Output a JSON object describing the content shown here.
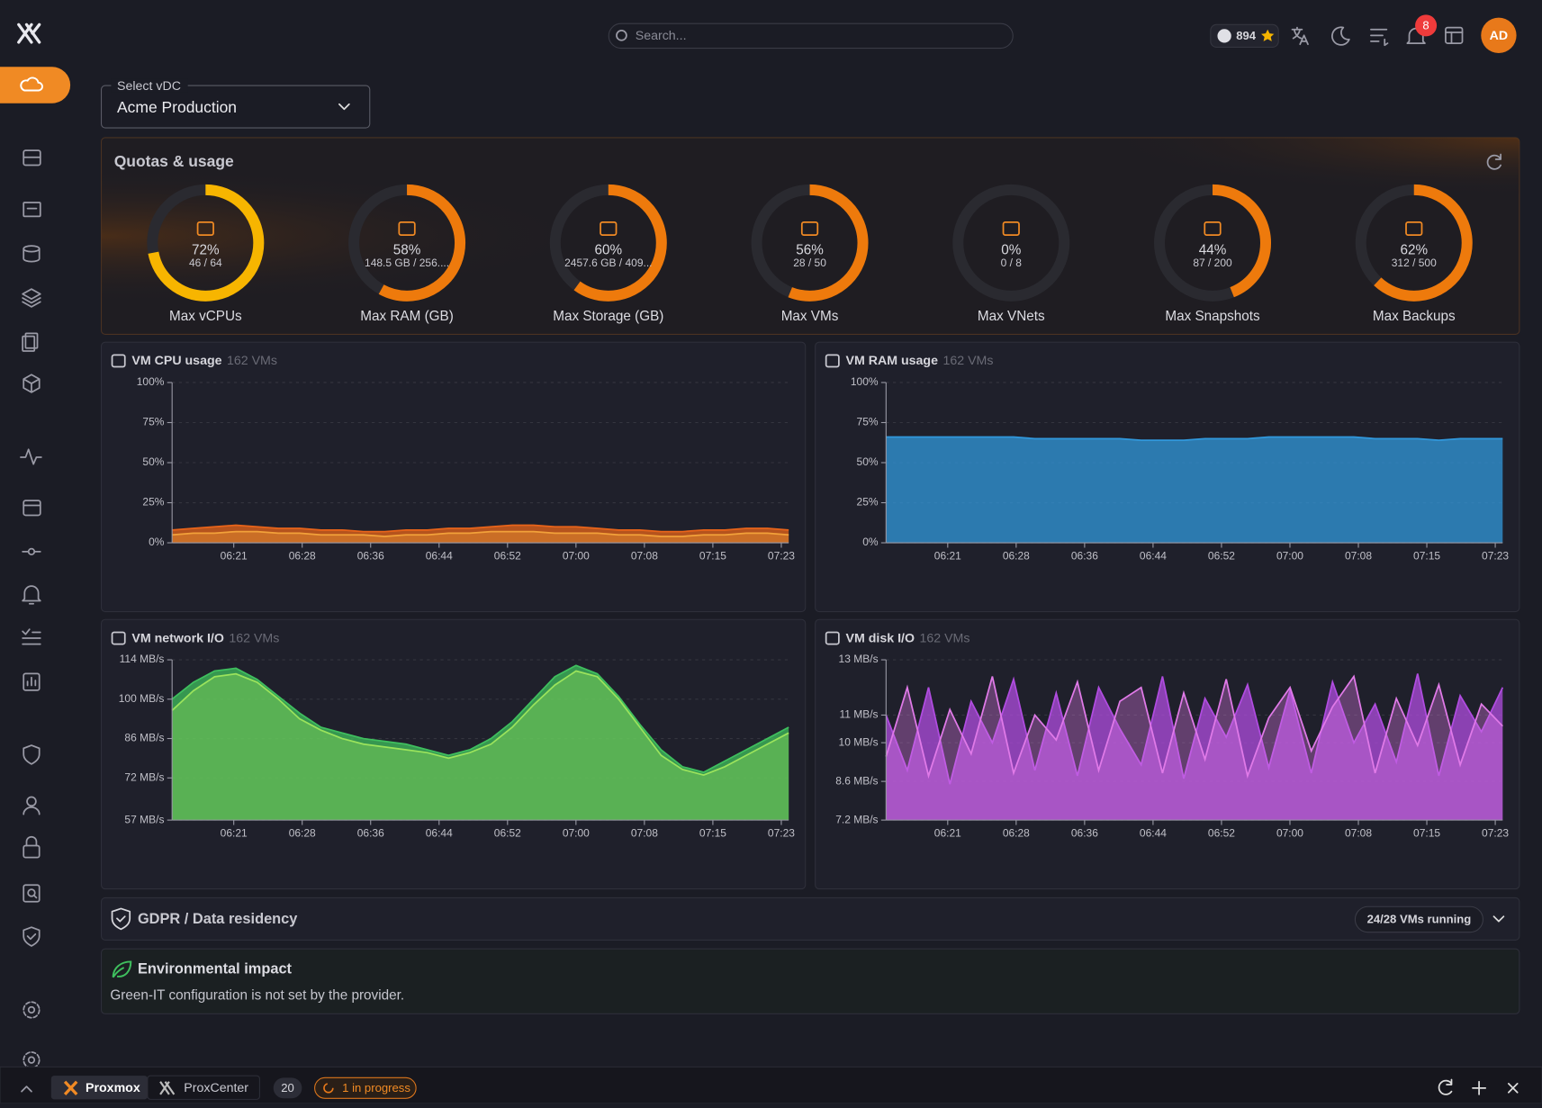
{
  "header": {
    "search_placeholder": "Search...",
    "github_stars": 894,
    "notifications": 8,
    "avatar": "AD"
  },
  "vdc": {
    "label": "Select vDC",
    "value": "Acme Production"
  },
  "quotas": {
    "title": "Quotas & usage",
    "items": [
      {
        "name": "Max vCPUs",
        "value": 72,
        "value_label": "72%",
        "detail": "46 / 64",
        "color": "#f7b500"
      },
      {
        "name": "Max RAM (GB)",
        "value": 58,
        "value_label": "58%",
        "detail": "148.5 GB / 256....",
        "color": "#ee7a0c"
      },
      {
        "name": "Max Storage (GB)",
        "value": 60,
        "value_label": "60%",
        "detail": "2457.6 GB / 409...",
        "color": "#ee7a0c"
      },
      {
        "name": "Max VMs",
        "value": 56,
        "value_label": "56%",
        "detail": "28 / 50",
        "color": "#ee7a0c"
      },
      {
        "name": "Max VNets",
        "value": 0,
        "value_label": "0%",
        "detail": "0 / 8",
        "color": "#ee7a0c"
      },
      {
        "name": "Max Snapshots",
        "value": 44,
        "value_label": "44%",
        "detail": "87 / 200",
        "color": "#ee7a0c"
      },
      {
        "name": "Max Backups",
        "value": 62,
        "value_label": "62%",
        "detail": "312 / 500",
        "color": "#ee7a0c"
      }
    ]
  },
  "charts": [
    {
      "type": "area",
      "title": "VM CPU usage",
      "subtitle": "162 VMs",
      "ylim": [
        0,
        100
      ],
      "yticks": [
        {
          "value": 0,
          "label": "0%"
        },
        {
          "value": 25,
          "label": "25%"
        },
        {
          "value": 50,
          "label": "50%"
        },
        {
          "value": 75,
          "label": "75%"
        },
        {
          "value": 100,
          "label": "100%"
        }
      ],
      "x_labels": [
        "06:21",
        "06:28",
        "06:36",
        "06:44",
        "06:52",
        "07:00",
        "07:08",
        "07:15",
        "07:23"
      ],
      "series": [
        {
          "color": "#e8641a",
          "values": [
            8,
            9,
            10,
            11,
            10,
            9,
            9,
            8,
            8,
            7,
            7,
            8,
            8,
            9,
            9,
            10,
            11,
            11,
            10,
            10,
            9,
            8,
            8,
            7,
            7,
            8,
            8,
            9,
            9,
            8
          ]
        },
        {
          "color": "#f2a13a",
          "values": [
            5,
            6,
            6,
            7,
            7,
            6,
            6,
            5,
            5,
            5,
            4,
            5,
            5,
            6,
            6,
            7,
            7,
            7,
            6,
            6,
            6,
            5,
            5,
            4,
            4,
            5,
            5,
            6,
            6,
            5
          ]
        }
      ]
    },
    {
      "type": "area",
      "title": "VM RAM usage",
      "subtitle": "162 VMs",
      "ylim": [
        0,
        100
      ],
      "yticks": [
        {
          "value": 0,
          "label": "0%"
        },
        {
          "value": 25,
          "label": "25%"
        },
        {
          "value": 50,
          "label": "50%"
        },
        {
          "value": 75,
          "label": "75%"
        },
        {
          "value": 100,
          "label": "100%"
        }
      ],
      "x_labels": [
        "06:21",
        "06:28",
        "06:36",
        "06:44",
        "06:52",
        "07:00",
        "07:08",
        "07:15",
        "07:23"
      ],
      "series": [
        {
          "color": "#3198dc",
          "values": [
            66,
            66,
            66,
            66,
            66,
            66,
            66,
            65,
            65,
            65,
            65,
            65,
            64,
            64,
            64,
            65,
            65,
            65,
            66,
            66,
            66,
            66,
            66,
            65,
            65,
            65,
            64,
            65,
            65,
            65
          ]
        }
      ]
    },
    {
      "type": "area",
      "title": "VM network I/O",
      "subtitle": "162 VMs",
      "ylim": [
        57,
        114
      ],
      "yticks": [
        {
          "value": 57,
          "label": "57 MB/s"
        },
        {
          "value": 72,
          "label": "72 MB/s"
        },
        {
          "value": 86,
          "label": "86 MB/s"
        },
        {
          "value": 100,
          "label": "100 MB/s"
        },
        {
          "value": 114,
          "label": "114 MB/s"
        }
      ],
      "x_labels": [
        "06:21",
        "06:28",
        "06:36",
        "06:44",
        "06:52",
        "07:00",
        "07:08",
        "07:15",
        "07:23"
      ],
      "series": [
        {
          "color": "#3fbf5e",
          "values": [
            100,
            106,
            110,
            111,
            107,
            101,
            95,
            90,
            88,
            86,
            85,
            84,
            82,
            80,
            82,
            86,
            92,
            100,
            108,
            112,
            109,
            101,
            91,
            82,
            76,
            74,
            78,
            82,
            86,
            90
          ]
        },
        {
          "color": "#9be35c",
          "values": [
            96,
            103,
            108,
            109,
            106,
            100,
            93,
            89,
            86,
            84,
            83,
            82,
            81,
            79,
            81,
            84,
            90,
            98,
            105,
            110,
            108,
            100,
            90,
            80,
            75,
            73,
            76,
            80,
            84,
            88
          ]
        }
      ]
    },
    {
      "type": "area",
      "title": "VM disk I/O",
      "subtitle": "162 VMs",
      "ylim": [
        7.2,
        13
      ],
      "yticks": [
        {
          "value": 7.2,
          "label": "7.2 MB/s"
        },
        {
          "value": 8.6,
          "label": "8.6 MB/s"
        },
        {
          "value": 10,
          "label": "10 MB/s"
        },
        {
          "value": 11,
          "label": "11 MB/s"
        },
        {
          "value": 13,
          "label": "13 MB/s"
        }
      ],
      "x_labels": [
        "06:21",
        "06:28",
        "06:36",
        "06:44",
        "06:52",
        "07:00",
        "07:08",
        "07:15",
        "07:23"
      ],
      "series": [
        {
          "color": "#b04ce0",
          "values": [
            11,
            9,
            12,
            8.5,
            11.5,
            10,
            12.3,
            9,
            11.8,
            8.8,
            12,
            10.5,
            9.2,
            12.4,
            8.7,
            11.6,
            10.2,
            12.1,
            9.1,
            11.9,
            8.9,
            12.2,
            10,
            11.4,
            9.3,
            12.5,
            8.8,
            11.7,
            10.4,
            12
          ]
        },
        {
          "color": "#e07ae8",
          "values": [
            9.5,
            12,
            8.8,
            11.2,
            9.6,
            12.4,
            8.9,
            11,
            10.1,
            12.2,
            9,
            11.5,
            12,
            8.9,
            11.8,
            9.4,
            12.3,
            8.8,
            10.9,
            12,
            9.7,
            11.3,
            12.4,
            8.9,
            11.6,
            9.9,
            12.1,
            9.2,
            11.4,
            10.6
          ]
        }
      ]
    }
  ],
  "gdpr": {
    "title": "GDPR / Data residency",
    "badge": "24/28 VMs running"
  },
  "environment": {
    "title": "Environmental impact",
    "text": "Green-IT configuration is not set by the provider."
  },
  "footer": {
    "tabs": [
      "Proxmox",
      "ProxCenter"
    ],
    "count": 20,
    "status": "1 in progress"
  }
}
